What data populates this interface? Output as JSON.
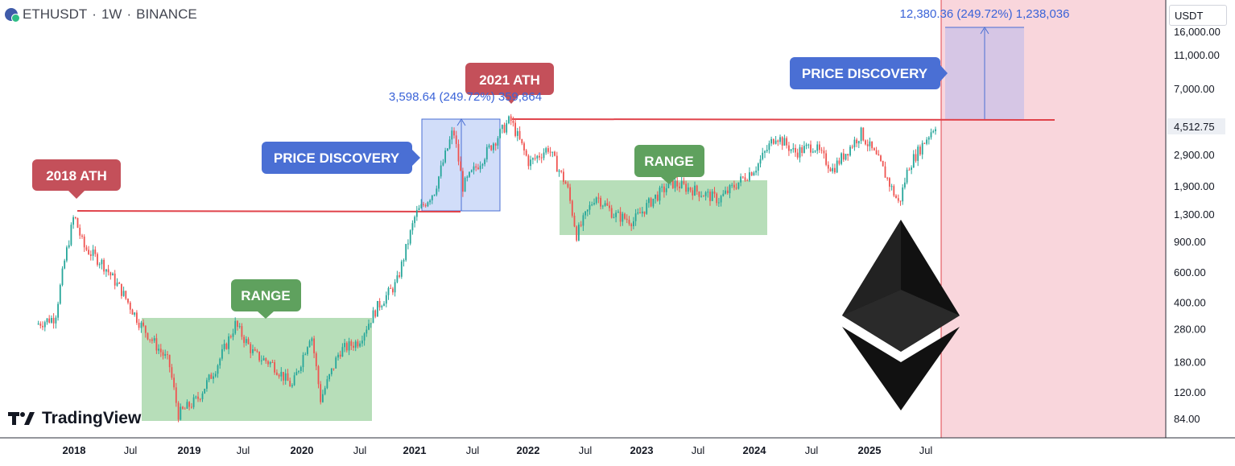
{
  "header": {
    "symbol": "ETHUSDT",
    "sep1": "·",
    "interval": "1W",
    "sep2": "·",
    "exchange": "BINANCE"
  },
  "currency_label": "USDT",
  "watermark": "TradingView",
  "colors": {
    "up": "#26a69a",
    "down": "#ef5350",
    "range_fill": "#a5d6a7",
    "discovery_fill": "#c5d5f7",
    "target_fill": "#d2c4e6",
    "future_fill": "#f9d6dc",
    "ath_line": "#e0424a",
    "blue_badge": "#4a6fd4",
    "red_badge": "#c4505a",
    "green_badge": "#5fa15e",
    "measure_text": "#3a63d8"
  },
  "annotations": {
    "ath_2018": "2018 ATH",
    "ath_2021": "2021 ATH",
    "range_1": "RANGE",
    "range_2": "RANGE",
    "discovery_1": "PRICE DISCOVERY",
    "discovery_2": "PRICE DISCOVERY",
    "measure_1": "3,598.64 (249.72%) 359,864",
    "measure_2": "12,380.36 (249.72%) 1,238,036"
  },
  "chart_data": {
    "type": "candlestick",
    "title": "ETHUSDT · 1W · BINANCE",
    "y_scale": "log",
    "x_ticks": [
      "2018",
      "Jul",
      "2019",
      "Jul",
      "2020",
      "Jul",
      "2021",
      "Jul",
      "2022",
      "Jul",
      "2023",
      "Jul",
      "2024",
      "Jul",
      "2025",
      "Jul"
    ],
    "y_ticks": [
      "16,000.00",
      "11,000.00",
      "7,000.00",
      "4,512.75",
      "2,900.00",
      "1,900.00",
      "1,300.00",
      "900.00",
      "600.00",
      "400.00",
      "280.00",
      "180.00",
      "120.00",
      "84.00"
    ],
    "last_price": "4,512.75",
    "price_path": [
      {
        "date": "2017-09",
        "price": 300
      },
      {
        "date": "2017-11",
        "price": 330
      },
      {
        "date": "2017-12",
        "price": 700
      },
      {
        "date": "2018-01",
        "price": 1300
      },
      {
        "date": "2018-02",
        "price": 850
      },
      {
        "date": "2018-04",
        "price": 680
      },
      {
        "date": "2018-06",
        "price": 470
      },
      {
        "date": "2018-08",
        "price": 300
      },
      {
        "date": "2018-11",
        "price": 180
      },
      {
        "date": "2018-12",
        "price": 90
      },
      {
        "date": "2019-02",
        "price": 110
      },
      {
        "date": "2019-04",
        "price": 170
      },
      {
        "date": "2019-06",
        "price": 300
      },
      {
        "date": "2019-08",
        "price": 200
      },
      {
        "date": "2019-10",
        "price": 175
      },
      {
        "date": "2019-12",
        "price": 130
      },
      {
        "date": "2020-02",
        "price": 270
      },
      {
        "date": "2020-03",
        "price": 110
      },
      {
        "date": "2020-05",
        "price": 210
      },
      {
        "date": "2020-07",
        "price": 240
      },
      {
        "date": "2020-09",
        "price": 380
      },
      {
        "date": "2020-11",
        "price": 520
      },
      {
        "date": "2021-01",
        "price": 1300
      },
      {
        "date": "2021-03",
        "price": 1800
      },
      {
        "date": "2021-05",
        "price": 4100
      },
      {
        "date": "2021-06",
        "price": 1900
      },
      {
        "date": "2021-07",
        "price": 2300
      },
      {
        "date": "2021-09",
        "price": 3300
      },
      {
        "date": "2021-11",
        "price": 4700
      },
      {
        "date": "2022-01",
        "price": 2600
      },
      {
        "date": "2022-03",
        "price": 3200
      },
      {
        "date": "2022-05",
        "price": 1900
      },
      {
        "date": "2022-06",
        "price": 1000
      },
      {
        "date": "2022-08",
        "price": 1700
      },
      {
        "date": "2022-10",
        "price": 1300
      },
      {
        "date": "2022-12",
        "price": 1200
      },
      {
        "date": "2023-02",
        "price": 1600
      },
      {
        "date": "2023-04",
        "price": 2000
      },
      {
        "date": "2023-06",
        "price": 1850
      },
      {
        "date": "2023-09",
        "price": 1600
      },
      {
        "date": "2023-11",
        "price": 2000
      },
      {
        "date": "2024-01",
        "price": 2500
      },
      {
        "date": "2024-03",
        "price": 3800
      },
      {
        "date": "2024-05",
        "price": 3000
      },
      {
        "date": "2024-07",
        "price": 3300
      },
      {
        "date": "2024-09",
        "price": 2400
      },
      {
        "date": "2024-12",
        "price": 3900
      },
      {
        "date": "2025-02",
        "price": 2600
      },
      {
        "date": "2025-04",
        "price": 1500
      },
      {
        "date": "2025-05",
        "price": 2500
      },
      {
        "date": "2025-07",
        "price": 3700
      },
      {
        "date": "2025-08",
        "price": 4512.75
      }
    ]
  }
}
